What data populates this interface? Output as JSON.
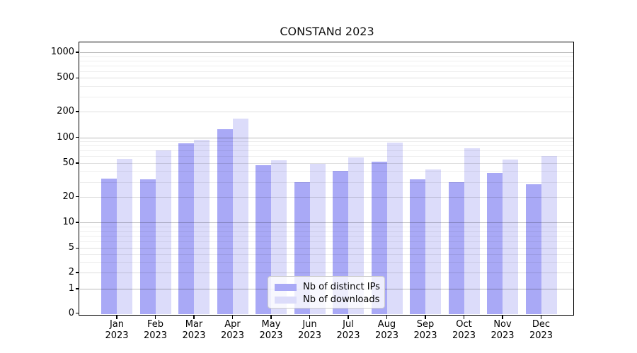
{
  "chart_data": {
    "type": "bar",
    "title": "CONSTANd 2023",
    "yscale": "symlog",
    "ylim": [
      0,
      1300
    ],
    "grid": true,
    "legend_position": "bottom-center",
    "yticks": [
      0,
      1,
      2,
      5,
      10,
      20,
      50,
      100,
      200,
      500,
      1000
    ],
    "minor_grid_values": [
      3,
      4,
      6,
      7,
      8,
      9,
      30,
      40,
      60,
      70,
      80,
      90,
      300,
      400,
      600,
      700,
      800,
      900
    ],
    "categories": [
      "Jan",
      "Feb",
      "Mar",
      "Apr",
      "May",
      "Jun",
      "Jul",
      "Aug",
      "Sep",
      "Oct",
      "Nov",
      "Dec"
    ],
    "year_label": "2023",
    "series": [
      {
        "name": "Nb of distinct IPs",
        "color": "#a9a9f6",
        "values": [
          33,
          32,
          85,
          125,
          47,
          30,
          40,
          52,
          32,
          30,
          38,
          28
        ]
      },
      {
        "name": "Nb of downloads",
        "color": "#dcdcfa",
        "values": [
          56,
          70,
          93,
          165,
          54,
          49,
          58,
          87,
          42,
          74,
          55,
          60
        ]
      }
    ],
    "colors": {
      "axis": "#000000",
      "background": "#ffffff",
      "grid_power_of_ten": "#b8b8b8",
      "grid_labeled": "#dddddd",
      "grid_minor": "#efefef"
    }
  }
}
